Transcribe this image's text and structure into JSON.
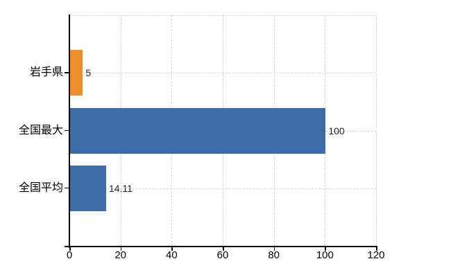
{
  "chart_data": {
    "type": "bar",
    "orientation": "horizontal",
    "title": "",
    "categories": [
      "岩手県",
      "全国最大",
      "全国平均"
    ],
    "values": [
      5,
      100,
      14.11
    ],
    "value_labels": [
      "5",
      "100",
      "14.11"
    ],
    "bar_colors": [
      "#EE8D2E",
      "#3D6CA9",
      "#3D6CA9"
    ],
    "xlim": [
      0,
      120
    ],
    "x_ticks": [
      0,
      20,
      40,
      60,
      80,
      100,
      120
    ],
    "x_tick_labels": [
      "0",
      "20",
      "40",
      "60",
      "80",
      "100",
      "120"
    ],
    "xlabel": "",
    "ylabel": "",
    "grid": "on",
    "gridline_style": "dashed",
    "legend_position": "none"
  },
  "colors": {
    "bar_orange": "#EE8D2E",
    "bar_blue": "#3D6CA9",
    "gridline": "#D6D6D6",
    "axis": "#000000",
    "label_text": "#000000",
    "value_text": "#1F2430",
    "background": "#FFFFFF"
  }
}
